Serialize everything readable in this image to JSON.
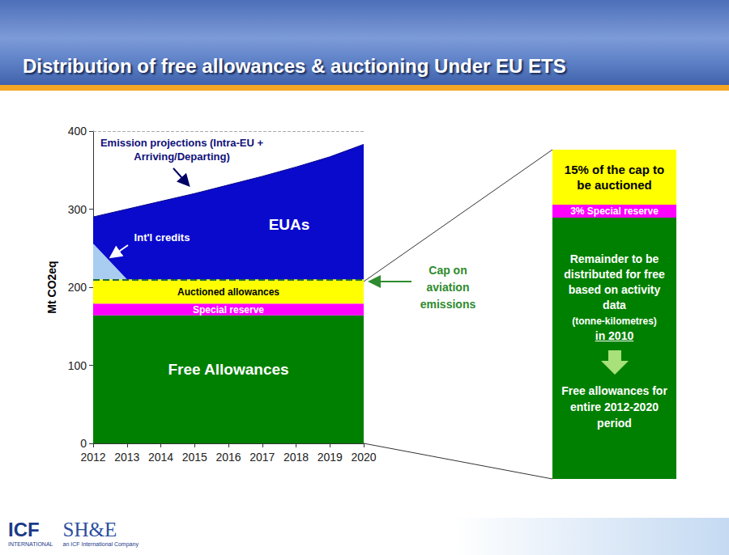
{
  "header": {
    "title": "Distribution of free allowances & auctioning Under EU ETS"
  },
  "chart_data": {
    "type": "area",
    "stacked": true,
    "ylabel": "Mt CO2eq",
    "categories": [
      "2012",
      "2013",
      "2014",
      "2015",
      "2016",
      "2017",
      "2018",
      "2019",
      "2020"
    ],
    "ylim": [
      0,
      400
    ],
    "yticks": [
      0,
      100,
      200,
      300,
      400
    ],
    "grid": false,
    "series": [
      {
        "name": "Free Allowances",
        "color": "#008000",
        "values": [
          164,
          164,
          164,
          164,
          164,
          164,
          164,
          164,
          164
        ]
      },
      {
        "name": "Special reserve",
        "color": "#ff00ff",
        "values": [
          15,
          15,
          15,
          15,
          15,
          15,
          15,
          15,
          15
        ]
      },
      {
        "name": "Auctioned allowances",
        "color": "#ffff00",
        "values": [
          31,
          31,
          31,
          31,
          31,
          31,
          31,
          31,
          31
        ]
      },
      {
        "name": "Int'l credits",
        "color": "#a9cdf0",
        "values": [
          46,
          0,
          0,
          0,
          0,
          0,
          0,
          0,
          0
        ]
      },
      {
        "name": "EUAs",
        "color": "#0a0acd",
        "values": [
          34,
          90,
          100,
          110,
          121,
          132,
          144,
          157,
          173
        ]
      }
    ],
    "cap": {
      "value": 210,
      "label": "Cap on aviation emissions"
    },
    "annotations": [
      "Emission projections (Intra-EU + Arriving/Departing)"
    ]
  },
  "panel": {
    "auctioned": "15% of the cap to be auctioned",
    "reserve": "3% Special reserve",
    "remainder": "Remainder to be distributed for free based on activity data",
    "basis": "(tonne-kilometres)",
    "year": "in 2010",
    "result": "Free allowances for entire 2012-2020 period"
  },
  "footer": {
    "logos": [
      "ICF",
      "SH&E"
    ],
    "taglines": [
      "INTERNATIONAL",
      "an ICF International Company"
    ]
  }
}
